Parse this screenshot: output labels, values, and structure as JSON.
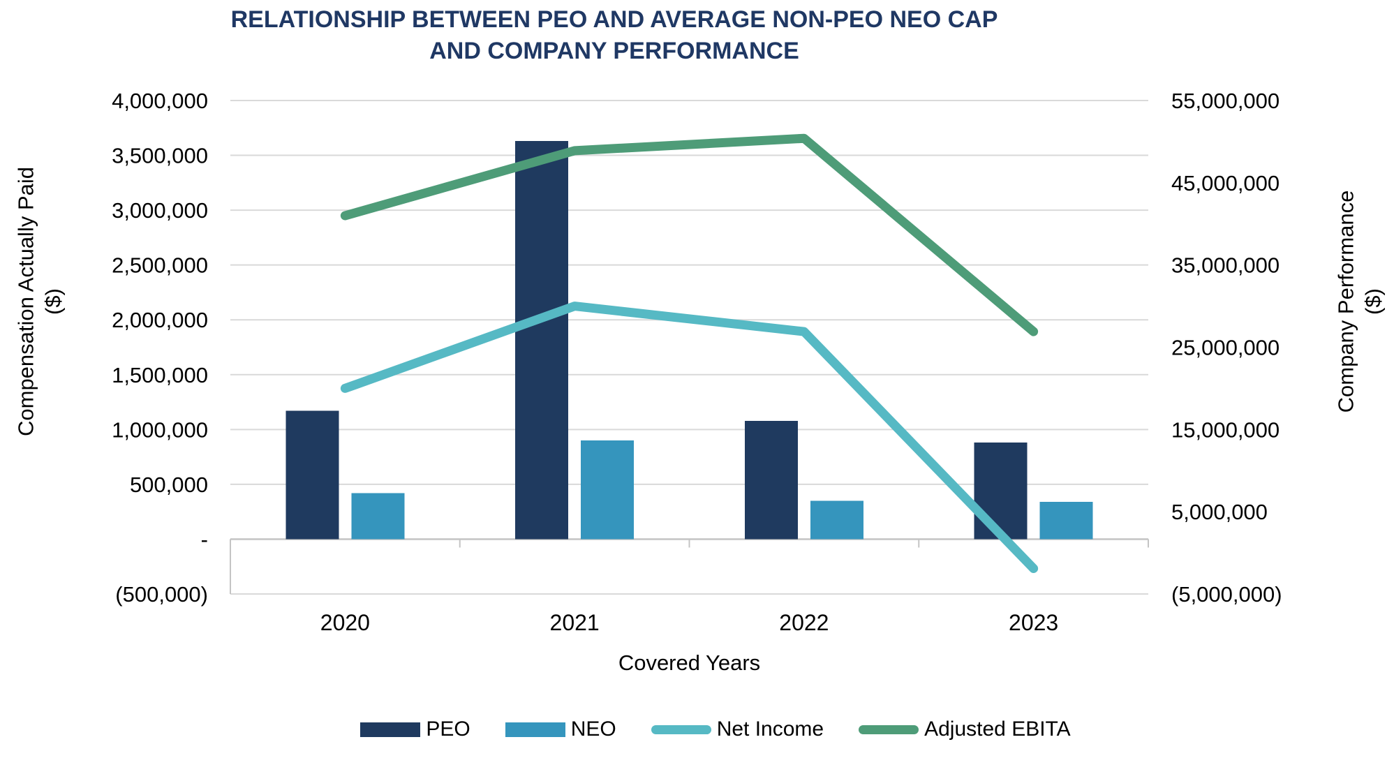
{
  "title": {
    "line1": "RELATIONSHIP BETWEEN PEO AND AVERAGE NON-PEO NEO CAP",
    "line2": "AND COMPANY PERFORMANCE"
  },
  "left_axis": {
    "title_line1": "Compensation Actually Paid",
    "title_line2": "($)",
    "min": -500000,
    "max": 4000000,
    "ticks": [
      {
        "label": "4,000,000",
        "value": 4000000
      },
      {
        "label": "3,500,000",
        "value": 3500000
      },
      {
        "label": "3,000,000",
        "value": 3000000
      },
      {
        "label": "2,500,000",
        "value": 2500000
      },
      {
        "label": "2,000,000",
        "value": 2000000
      },
      {
        "label": "1,500,000",
        "value": 1500000
      },
      {
        "label": "1,000,000",
        "value": 1000000
      },
      {
        "label": "500,000",
        "value": 500000
      },
      {
        "label": "-",
        "value": 0
      },
      {
        "label": "(500,000)",
        "value": -500000
      }
    ]
  },
  "right_axis": {
    "title_line1": "Company Performance",
    "title_line2": "($)",
    "min": -5000000,
    "max": 55000000,
    "ticks": [
      {
        "label": "55,000,000",
        "value": 55000000
      },
      {
        "label": "45,000,000",
        "value": 45000000
      },
      {
        "label": "35,000,000",
        "value": 35000000
      },
      {
        "label": "25,000,000",
        "value": 25000000
      },
      {
        "label": "15,000,000",
        "value": 15000000
      },
      {
        "label": "5,000,000",
        "value": 5000000
      },
      {
        "label": "(5,000,000)",
        "value": -5000000
      }
    ]
  },
  "x_axis": {
    "title": "Covered Years",
    "categories": [
      "2020",
      "2021",
      "2022",
      "2023"
    ]
  },
  "legend": {
    "items": [
      {
        "label": "PEO",
        "swatch": "bar",
        "color": "#1f3a5f"
      },
      {
        "label": "NEO",
        "swatch": "bar",
        "color": "#3595bd"
      },
      {
        "label": "Net Income",
        "swatch": "line",
        "color": "#56b9c4"
      },
      {
        "label": "Adjusted EBITA",
        "swatch": "line",
        "color": "#4e9c78"
      }
    ]
  },
  "colors": {
    "title_navy": "#1f3864",
    "peo_navy": "#1f3a5f",
    "neo_blue": "#3595bd",
    "net_income_teal": "#56b9c4",
    "ebita_green": "#4e9c78",
    "gridline": "#d9d9d9",
    "axis_line": "#c4c4c4",
    "tick_text": "#000000"
  },
  "chart_data": {
    "type": "combo",
    "title": "RELATIONSHIP BETWEEN PEO AND AVERAGE NON-PEO NEO CAP AND COMPANY PERFORMANCE",
    "xlabel": "Covered Years",
    "ylabel_left": "Compensation Actually Paid ($)",
    "ylabel_right": "Company Performance ($)",
    "categories": [
      "2020",
      "2021",
      "2022",
      "2023"
    ],
    "series": [
      {
        "name": "PEO",
        "type": "bar",
        "axis": "left",
        "color": "#1f3a5f",
        "values": [
          1170000,
          3630000,
          1080000,
          880000
        ]
      },
      {
        "name": "NEO",
        "type": "bar",
        "axis": "left",
        "color": "#3595bd",
        "values": [
          420000,
          900000,
          350000,
          340000
        ]
      },
      {
        "name": "Net Income",
        "type": "line",
        "axis": "right",
        "color": "#56b9c4",
        "values": [
          20000000,
          30000000,
          26900000,
          -1900000
        ]
      },
      {
        "name": "Adjusted EBITA",
        "type": "line",
        "axis": "right",
        "color": "#4e9c78",
        "values": [
          41000000,
          48900000,
          50400000,
          26900000
        ]
      }
    ],
    "ylim_left": [
      -500000,
      4000000
    ],
    "ylim_right": [
      -5000000,
      55000000
    ],
    "grid": true,
    "legend_position": "bottom"
  }
}
